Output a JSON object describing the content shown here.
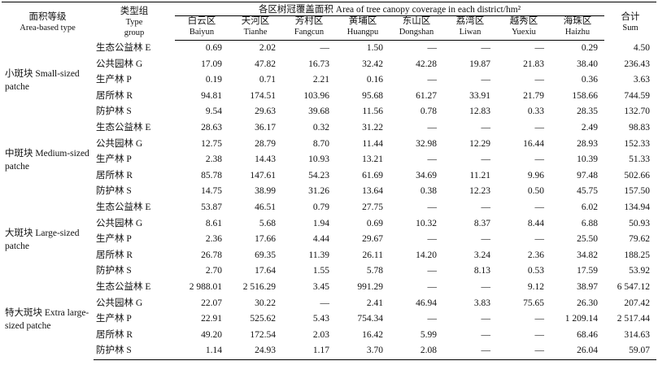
{
  "header": {
    "area_type": [
      "面积等级",
      "Area-based type"
    ],
    "type_group": [
      "类型组",
      "Type",
      "group"
    ],
    "span_title": "各区树冠覆盖面积 Area of tree canopy coverage in each district/hm²",
    "sum": [
      "合计",
      "Sum"
    ]
  },
  "districts": [
    {
      "zh": "白云区",
      "en": "Baiyun"
    },
    {
      "zh": "天河区",
      "en": "Tianhe"
    },
    {
      "zh": "芳村区",
      "en": "Fangcun"
    },
    {
      "zh": "黄埔区",
      "en": "Huangpu"
    },
    {
      "zh": "东山区",
      "en": "Dongshan"
    },
    {
      "zh": "荔湾区",
      "en": "Liwan"
    },
    {
      "zh": "越秀区",
      "en": "Yuexiu"
    },
    {
      "zh": "海珠区",
      "en": "Haizhu"
    }
  ],
  "groups": [
    {
      "label": "小斑块 Small-sized patche",
      "rows": [
        {
          "type": "生态公益林 E",
          "values": [
            "0.69",
            "2.02",
            "—",
            "1.50",
            "—",
            "—",
            "—",
            "0.29",
            "4.50"
          ]
        },
        {
          "type": "公共园林 G",
          "values": [
            "17.09",
            "47.82",
            "16.73",
            "32.42",
            "42.28",
            "19.87",
            "21.83",
            "38.40",
            "236.43"
          ]
        },
        {
          "type": "生产林 P",
          "values": [
            "0.19",
            "0.71",
            "2.21",
            "0.16",
            "—",
            "—",
            "—",
            "0.36",
            "3.63"
          ]
        },
        {
          "type": "居所林 R",
          "values": [
            "94.81",
            "174.51",
            "103.96",
            "95.68",
            "61.27",
            "33.91",
            "21.79",
            "158.66",
            "744.59"
          ]
        },
        {
          "type": "防护林 S",
          "values": [
            "9.54",
            "29.63",
            "39.68",
            "11.56",
            "0.78",
            "12.83",
            "0.33",
            "28.35",
            "132.70"
          ]
        }
      ]
    },
    {
      "label": "中斑块 Medium-sized patche",
      "rows": [
        {
          "type": "生态公益林 E",
          "values": [
            "28.63",
            "36.17",
            "0.32",
            "31.22",
            "—",
            "—",
            "—",
            "2.49",
            "98.83"
          ]
        },
        {
          "type": "公共园林 G",
          "values": [
            "12.75",
            "28.79",
            "8.70",
            "11.44",
            "32.98",
            "12.29",
            "16.44",
            "28.93",
            "152.33"
          ]
        },
        {
          "type": "生产林 P",
          "values": [
            "2.38",
            "14.43",
            "10.93",
            "13.21",
            "—",
            "—",
            "—",
            "10.39",
            "51.33"
          ]
        },
        {
          "type": "居所林 R",
          "values": [
            "85.78",
            "147.61",
            "54.23",
            "61.69",
            "34.69",
            "11.21",
            "9.96",
            "97.48",
            "502.66"
          ]
        },
        {
          "type": "防护林 S",
          "values": [
            "14.75",
            "38.99",
            "31.26",
            "13.64",
            "0.38",
            "12.23",
            "0.50",
            "45.75",
            "157.50"
          ]
        }
      ]
    },
    {
      "label": "大斑块 Large-sized patche",
      "rows": [
        {
          "type": "生态公益林 E",
          "values": [
            "53.87",
            "46.51",
            "0.79",
            "27.75",
            "—",
            "—",
            "—",
            "6.02",
            "134.94"
          ]
        },
        {
          "type": "公共园林 G",
          "values": [
            "8.61",
            "5.68",
            "1.94",
            "0.69",
            "10.32",
            "8.37",
            "8.44",
            "6.88",
            "50.93"
          ]
        },
        {
          "type": "生产林 P",
          "values": [
            "2.36",
            "17.66",
            "4.44",
            "29.67",
            "—",
            "—",
            "—",
            "25.50",
            "79.62"
          ]
        },
        {
          "type": "居所林 R",
          "values": [
            "26.78",
            "69.35",
            "11.39",
            "26.11",
            "14.20",
            "3.24",
            "2.36",
            "34.82",
            "188.25"
          ]
        },
        {
          "type": "防护林 S",
          "values": [
            "2.70",
            "17.64",
            "1.55",
            "5.78",
            "—",
            "8.13",
            "0.53",
            "17.59",
            "53.92"
          ]
        }
      ]
    },
    {
      "label": "特大斑块 Extra large-sized patche",
      "rows": [
        {
          "type": "生态公益林 E",
          "values": [
            "2 988.01",
            "2 516.29",
            "3.45",
            "991.29",
            "—",
            "—",
            "9.12",
            "38.97",
            "6 547.12"
          ]
        },
        {
          "type": "公共园林 G",
          "values": [
            "22.07",
            "30.22",
            "—",
            "2.41",
            "46.94",
            "3.83",
            "75.65",
            "26.30",
            "207.42"
          ]
        },
        {
          "type": "生产林 P",
          "values": [
            "22.91",
            "525.62",
            "5.43",
            "754.34",
            "—",
            "—",
            "—",
            "1 209.14",
            "2 517.44"
          ]
        },
        {
          "type": "居所林 R",
          "values": [
            "49.20",
            "172.54",
            "2.03",
            "16.42",
            "5.99",
            "—",
            "—",
            "68.46",
            "314.63"
          ]
        },
        {
          "type": "防护林 S",
          "values": [
            "1.14",
            "24.93",
            "1.17",
            "3.70",
            "2.08",
            "—",
            "—",
            "26.04",
            "59.07"
          ]
        }
      ]
    }
  ]
}
